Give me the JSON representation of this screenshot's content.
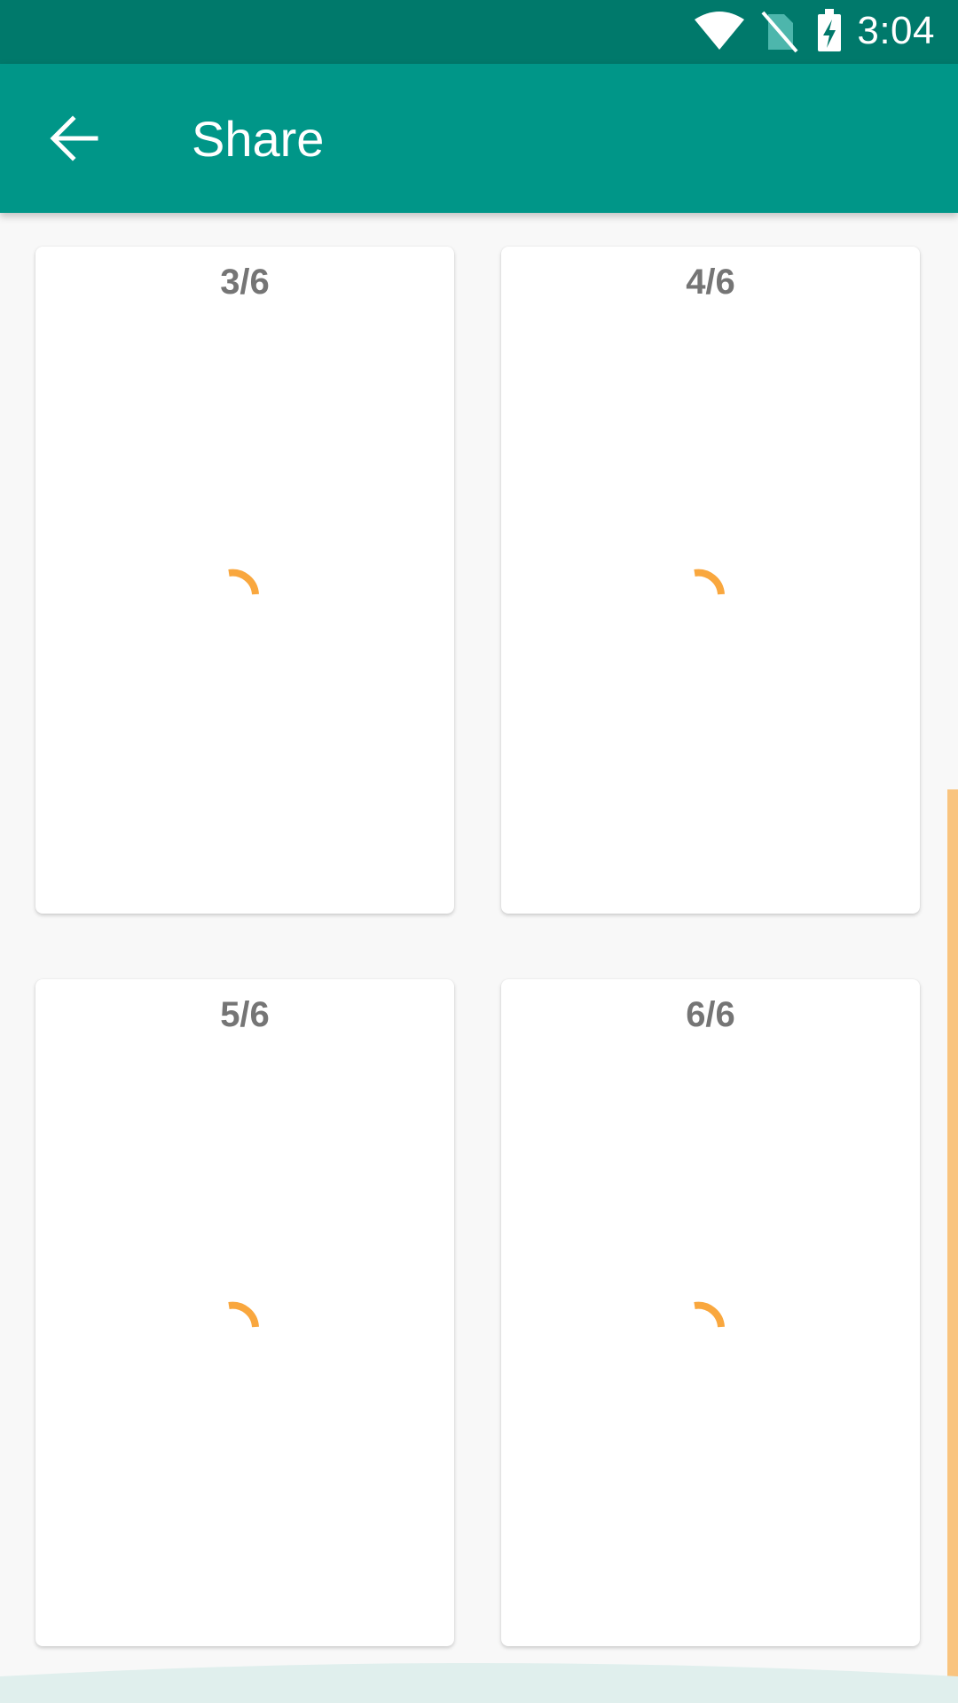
{
  "status_bar": {
    "time": "3:04",
    "icons": [
      "wifi-icon",
      "no-sim-icon",
      "battery-charging-icon"
    ]
  },
  "app_bar": {
    "back_icon": "arrow-back-icon",
    "title": "Share"
  },
  "pages": [
    {
      "label": "3/6",
      "state": "loading"
    },
    {
      "label": "4/6",
      "state": "loading"
    },
    {
      "label": "5/6",
      "state": "loading"
    },
    {
      "label": "6/6",
      "state": "loading"
    }
  ],
  "colors": {
    "status_bar": "#00796b",
    "app_bar": "#009688",
    "spinner": "#f9a73e",
    "scrollbar": "#f9c47f",
    "background": "#f8f8f8"
  }
}
